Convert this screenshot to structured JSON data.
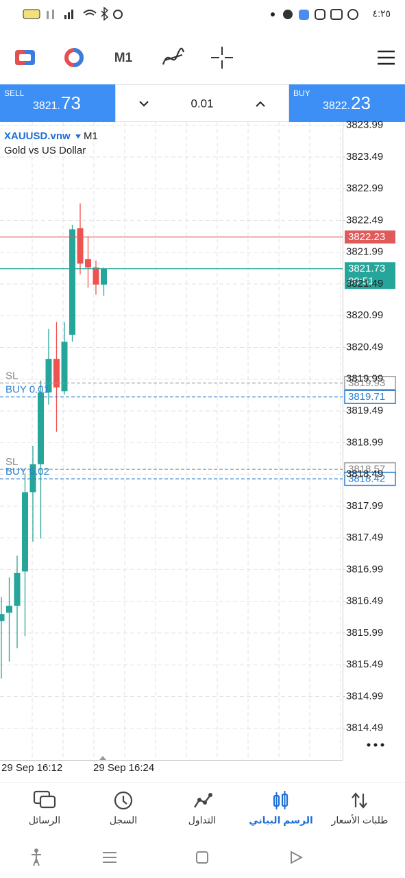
{
  "status_bar": {
    "time": "٤:٢٥"
  },
  "toolbar": {
    "timeframe": "M1"
  },
  "trade_panel": {
    "sell": {
      "label": "SELL",
      "price_head": "3821.",
      "price_tail": "73"
    },
    "volume": "0.01",
    "buy": {
      "label": "BUY",
      "price_head": "3822.",
      "price_tail": "23"
    }
  },
  "chart": {
    "symbol": "XAUUSD.vnw",
    "timeframe": "M1",
    "description": "Gold vs US Dollar",
    "ylim": [
      3813.99,
      3824.04
    ],
    "yticks": [
      3823.99,
      3823.49,
      3822.99,
      3822.49,
      3821.99,
      3821.49,
      3820.99,
      3820.49,
      3819.99,
      3819.49,
      3818.99,
      3818.49,
      3817.99,
      3817.49,
      3816.99,
      3816.49,
      3815.99,
      3815.49,
      3814.99,
      3814.49
    ],
    "grid": true,
    "up_color": "#26a69a",
    "down_color": "#ef5350",
    "candles": [
      {
        "open": 3816.18,
        "high": 3816.56,
        "low": 3815.27,
        "close": 3816.29
      },
      {
        "open": 3816.31,
        "high": 3816.87,
        "low": 3815.54,
        "close": 3816.42
      },
      {
        "open": 3816.42,
        "high": 3817.21,
        "low": 3815.75,
        "close": 3816.94
      },
      {
        "open": 3816.96,
        "high": 3818.51,
        "low": 3815.94,
        "close": 3818.21
      },
      {
        "open": 3818.21,
        "high": 3818.94,
        "low": 3817.43,
        "close": 3818.65
      },
      {
        "open": 3818.65,
        "high": 3819.97,
        "low": 3817.48,
        "close": 3819.78
      },
      {
        "open": 3819.78,
        "high": 3820.78,
        "low": 3819.59,
        "close": 3820.31
      },
      {
        "open": 3820.31,
        "high": 3820.89,
        "low": 3819.16,
        "close": 3819.86
      },
      {
        "open": 3819.8,
        "high": 3820.89,
        "low": 3819.75,
        "close": 3820.58
      },
      {
        "open": 3820.69,
        "high": 3822.42,
        "low": 3820.58,
        "close": 3822.35
      },
      {
        "open": 3822.37,
        "high": 3822.76,
        "low": 3821.64,
        "close": 3821.81
      },
      {
        "open": 3821.88,
        "high": 3822.24,
        "low": 3821.43,
        "close": 3821.75
      },
      {
        "open": 3821.75,
        "high": 3821.86,
        "low": 3821.32,
        "close": 3821.48
      },
      {
        "open": 3821.48,
        "high": 3821.75,
        "low": 3821.3,
        "close": 3821.73
      }
    ],
    "ask": 3822.23,
    "bid": 3821.73,
    "countdown": "00:51",
    "orders": [
      {
        "label": "BUY 0.01",
        "price": 3819.71,
        "sl_label": "SL",
        "sl": 3819.93
      },
      {
        "label": "BUY 0.02",
        "price": 3818.42,
        "sl_label": "SL",
        "sl": 3818.57
      }
    ],
    "x_labels": [
      "29 Sep 16:12",
      "29 Sep 16:24"
    ]
  },
  "bottom_nav": [
    "الرسائل",
    "السجل",
    "التداول",
    "الرسم البياني",
    "طلبات الأسعار"
  ]
}
